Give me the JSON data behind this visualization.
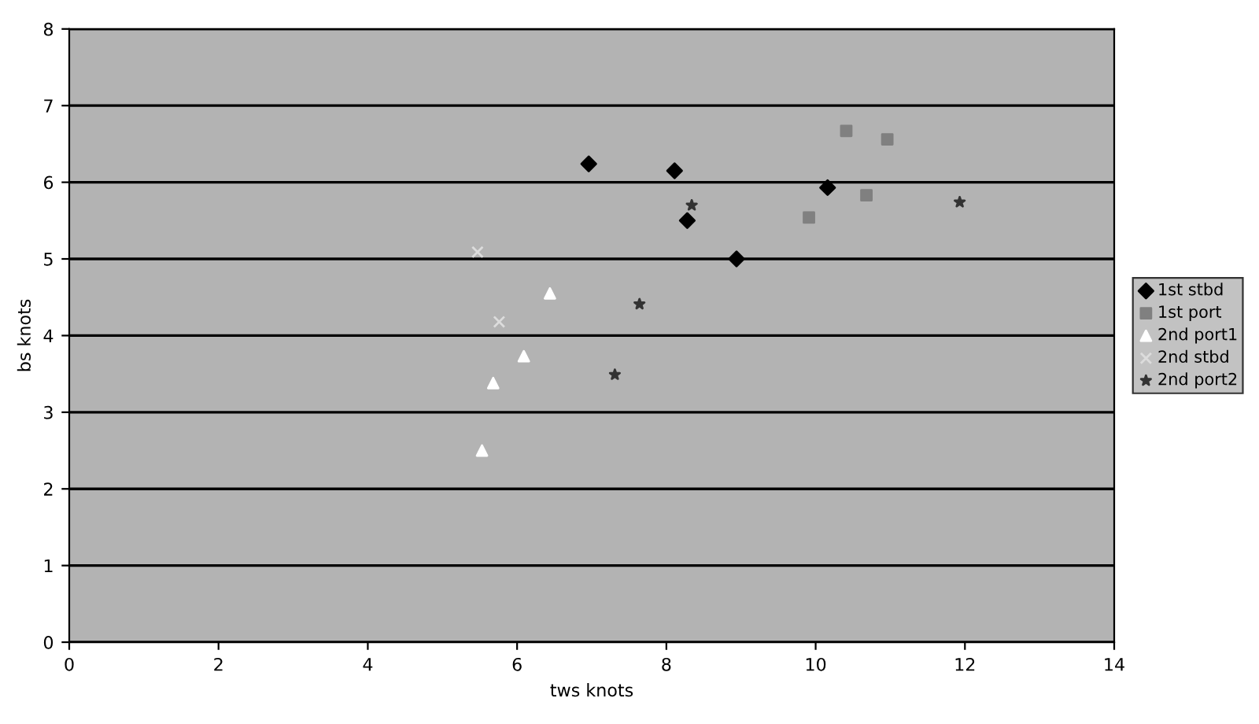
{
  "chart_data": {
    "type": "scatter",
    "xlabel": "tws knots",
    "ylabel": "bs knots",
    "xlim": [
      0,
      14
    ],
    "xticks": [
      0,
      2,
      4,
      6,
      8,
      10,
      12,
      14
    ],
    "ylim": [
      0,
      8
    ],
    "yticks": [
      0,
      1,
      2,
      3,
      4,
      5,
      6,
      7,
      8
    ],
    "grid": "y",
    "legend": "right",
    "series": [
      {
        "name": "1st stbd",
        "color": "#000000",
        "marker": "diamond",
        "x": [
          6.96,
          8.11,
          8.28,
          8.94,
          10.16
        ],
        "values": [
          6.24,
          6.15,
          5.5,
          5.0,
          5.93
        ]
      },
      {
        "name": "1st port",
        "color": "#808080",
        "marker": "square",
        "x": [
          10.41,
          10.96,
          10.68,
          9.91
        ],
        "values": [
          6.67,
          6.56,
          5.83,
          5.54
        ]
      },
      {
        "name": "2nd port1",
        "color": "#ffffff",
        "marker": "triangle",
        "x": [
          6.44,
          6.09,
          5.68,
          5.53
        ],
        "values": [
          4.55,
          3.73,
          3.38,
          2.5
        ]
      },
      {
        "name": "2nd stbd",
        "color": "#dcdcdc",
        "marker": "cross",
        "x": [
          5.47,
          5.76
        ],
        "values": [
          5.09,
          4.18
        ]
      },
      {
        "name": "2nd port2",
        "color": "#333333",
        "marker": "star",
        "x": [
          8.34,
          7.64,
          7.31,
          11.93
        ],
        "values": [
          5.7,
          4.41,
          3.49,
          5.74
        ]
      }
    ]
  }
}
